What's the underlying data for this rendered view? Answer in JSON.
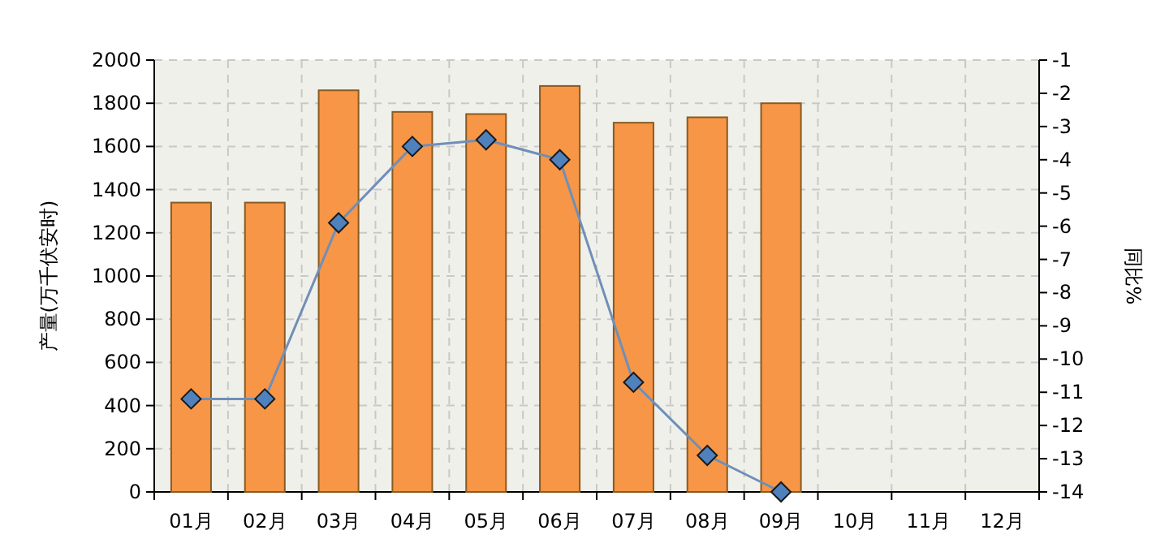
{
  "chart_data": {
    "type": "bar",
    "categories": [
      "01月",
      "02月",
      "03月",
      "04月",
      "05月",
      "06月",
      "07月",
      "08月",
      "09月",
      "10月",
      "11月",
      "12月"
    ],
    "series": [
      {
        "color": "#f79646",
        "values": [
          1340,
          1340,
          1860,
          1760,
          1750,
          1880,
          1710,
          1735,
          1800,
          null,
          null,
          null
        ]
      },
      {
        "type": "line",
        "axis": "y2",
        "color": "#6f8fb8",
        "marker": "diamond",
        "values": [
          -11.2,
          -11.2,
          -5.9,
          -3.6,
          -3.4,
          -4.0,
          -10.7,
          -12.9,
          -14.0,
          null,
          null,
          null
        ]
      }
    ],
    "ylabel": "产量(万千伏安时)",
    "y2label": "同比%",
    "ylim": [
      0,
      2000
    ],
    "yticks": [
      0,
      200,
      400,
      600,
      800,
      1000,
      1200,
      1400,
      1600,
      1800,
      2000
    ],
    "y2lim": [
      -14,
      -1
    ],
    "y2ticks": [
      -14,
      -13,
      -12,
      -11,
      -10,
      -9,
      -8,
      -7,
      -6,
      -5,
      -4,
      -3,
      -2,
      -1
    ],
    "grid": true
  }
}
